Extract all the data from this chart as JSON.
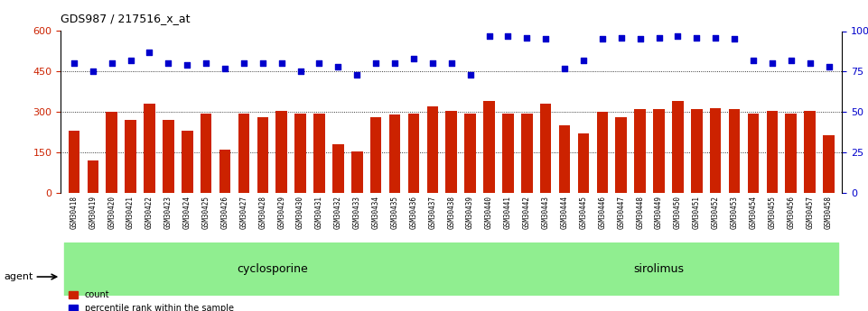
{
  "title": "GDS987 / 217516_x_at",
  "samples": [
    "GSM30418",
    "GSM30419",
    "GSM30420",
    "GSM30421",
    "GSM30422",
    "GSM30423",
    "GSM30424",
    "GSM30425",
    "GSM30426",
    "GSM30427",
    "GSM30428",
    "GSM30429",
    "GSM30430",
    "GSM30431",
    "GSM30432",
    "GSM30433",
    "GSM30434",
    "GSM30435",
    "GSM30436",
    "GSM30437",
    "GSM30438",
    "GSM30439",
    "GSM30440",
    "GSM30441",
    "GSM30442",
    "GSM30443",
    "GSM30444",
    "GSM30445",
    "GSM30446",
    "GSM30447",
    "GSM30448",
    "GSM30449",
    "GSM30450",
    "GSM30451",
    "GSM30452",
    "GSM30453",
    "GSM30454",
    "GSM30455",
    "GSM30456",
    "GSM30457",
    "GSM30458"
  ],
  "counts": [
    230,
    120,
    300,
    270,
    330,
    270,
    230,
    295,
    160,
    295,
    280,
    305,
    295,
    295,
    180,
    155,
    280,
    290,
    295,
    320,
    305,
    295,
    340,
    295,
    295,
    330,
    250,
    220,
    300,
    280,
    310,
    310,
    340,
    310,
    315,
    310,
    295,
    305,
    295,
    305,
    215
  ],
  "percentile": [
    80,
    75,
    80,
    82,
    87,
    80,
    79,
    80,
    77,
    80,
    80,
    80,
    75,
    80,
    78,
    73,
    80,
    80,
    83,
    80,
    80,
    73,
    97,
    97,
    96,
    95,
    77,
    82,
    95,
    96,
    95,
    96,
    97,
    96,
    96,
    95,
    82,
    80,
    82,
    80,
    78
  ],
  "groups": {
    "cyclosporine": [
      0,
      21
    ],
    "sirolimus": [
      22,
      40
    ]
  },
  "bar_color": "#cc2200",
  "dot_color": "#0000cc",
  "left_ylim": [
    0,
    600
  ],
  "right_ylim": [
    0,
    100
  ],
  "left_yticks": [
    0,
    150,
    300,
    450,
    600
  ],
  "right_yticks": [
    0,
    25,
    50,
    75,
    100
  ],
  "grid_lines": [
    150,
    300,
    450
  ],
  "group_bg_color": "#90ee90",
  "tick_bg_color": "#d0d0d0",
  "agent_label": "agent",
  "legend_count": "count",
  "legend_percentile": "percentile rank within the sample"
}
